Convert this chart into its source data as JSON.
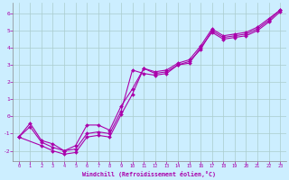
{
  "xlabel": "Windchill (Refroidissement éolien,°C)",
  "line_color": "#aa00aa",
  "bg_color": "#cceeff",
  "grid_color": "#aacccc",
  "xlim": [
    -0.5,
    23.5
  ],
  "ylim": [
    -2.6,
    6.6
  ],
  "xticks": [
    0,
    1,
    2,
    3,
    4,
    5,
    6,
    7,
    8,
    9,
    10,
    11,
    12,
    13,
    14,
    15,
    16,
    17,
    18,
    19,
    20,
    21,
    22,
    23
  ],
  "yticks": [
    -2,
    -1,
    0,
    1,
    2,
    3,
    4,
    5,
    6
  ],
  "series1_x": [
    0,
    1,
    2,
    3,
    4,
    5,
    6,
    7,
    8,
    9,
    10,
    11,
    12,
    13,
    14,
    15,
    16,
    17,
    18,
    19,
    20,
    21,
    22,
    23
  ],
  "series1_y": [
    -1.2,
    -0.6,
    -1.5,
    -1.8,
    -2.0,
    -1.9,
    -1.0,
    -0.9,
    -1.0,
    0.3,
    2.7,
    2.5,
    2.4,
    2.5,
    3.0,
    3.1,
    4.0,
    4.9,
    4.5,
    4.6,
    4.7,
    5.0,
    5.5,
    6.1
  ],
  "series2_x": [
    0,
    2,
    3,
    4,
    5,
    6,
    7,
    8,
    9,
    10,
    11,
    12,
    13,
    14,
    15,
    16,
    17,
    18,
    19,
    20,
    21,
    22,
    23
  ],
  "series2_y": [
    -1.2,
    -1.7,
    -2.0,
    -2.2,
    -2.1,
    -1.2,
    -1.1,
    -1.2,
    0.1,
    1.3,
    2.8,
    2.5,
    2.6,
    3.0,
    3.2,
    3.9,
    5.0,
    4.6,
    4.7,
    4.8,
    5.1,
    5.6,
    6.2
  ],
  "series3_x": [
    0,
    1,
    2,
    3,
    4,
    5,
    6,
    7,
    8,
    9,
    10,
    11,
    12,
    13,
    14,
    15,
    16,
    17,
    18,
    19,
    20,
    21,
    22,
    23
  ],
  "series3_y": [
    -1.2,
    -0.4,
    -1.4,
    -1.6,
    -2.0,
    -1.7,
    -0.5,
    -0.5,
    -0.8,
    0.6,
    1.6,
    2.8,
    2.6,
    2.7,
    3.1,
    3.3,
    4.1,
    5.1,
    4.7,
    4.8,
    4.9,
    5.2,
    5.7,
    6.2
  ]
}
